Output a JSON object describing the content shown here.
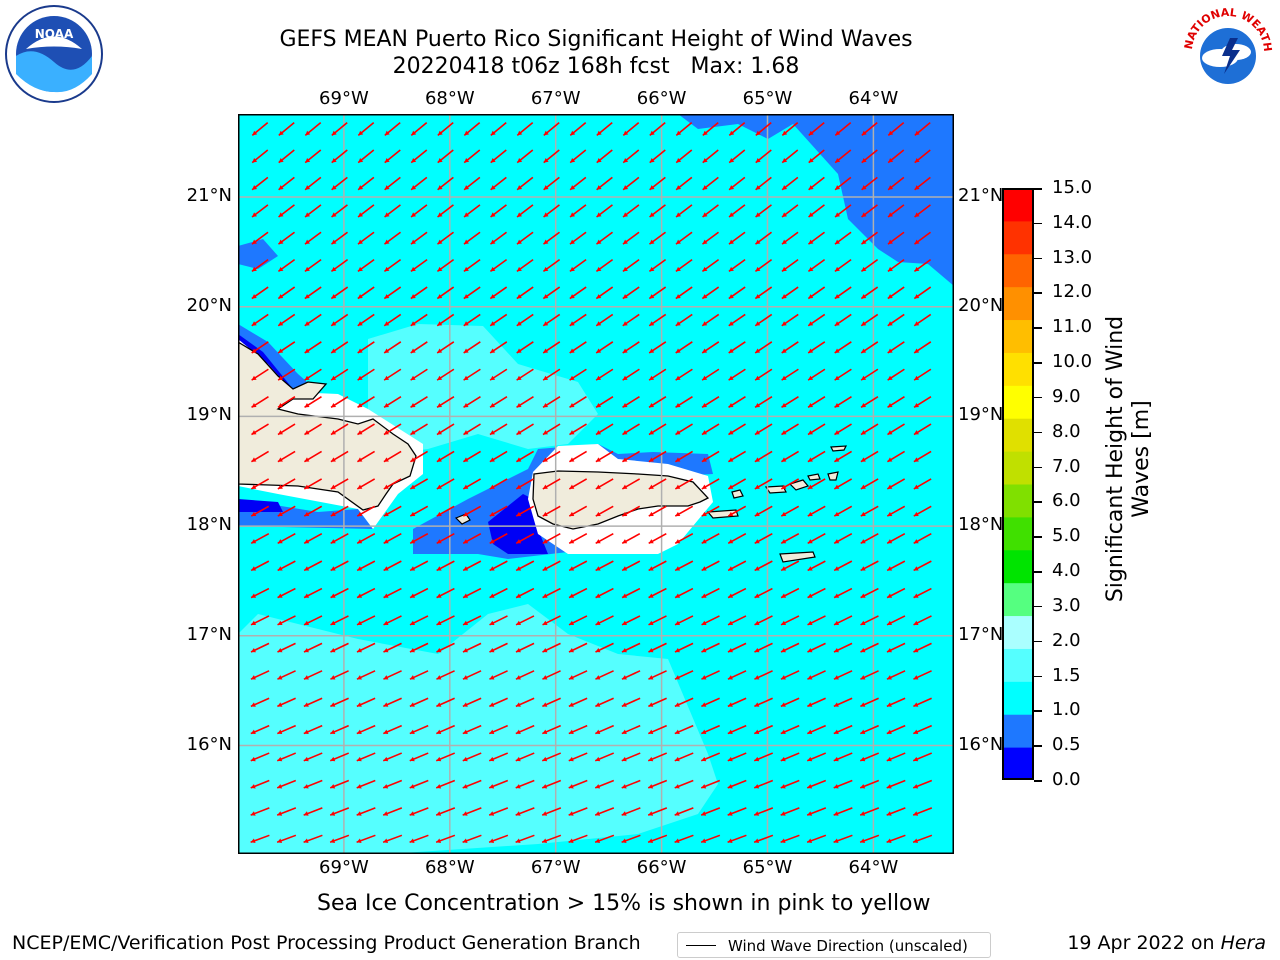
{
  "title": {
    "line1": "GEFS MEAN Puerto Rico Significant Height of Wind Waves",
    "line2": "20220418 t06z 168h fcst   Max: 1.68"
  },
  "map": {
    "lon_labels": [
      "69°W",
      "68°W",
      "67°W",
      "66°W",
      "65°W",
      "64°W"
    ],
    "lat_labels": [
      "21°N",
      "20°N",
      "19°N",
      "18°N",
      "17°N",
      "16°N"
    ],
    "legend_label": "Wind Wave Direction (unscaled)",
    "colors": {
      "ocean_base": "#00ffff",
      "light_cyan": "#55ffff",
      "blue": "#1e78ff",
      "dark_blue": "#0000f5",
      "land": "#f0ecdc",
      "grid": "#b0b0b0",
      "arrow": "#ff0000"
    }
  },
  "colorbar": {
    "label": "Significant Height of Wind Waves [m]",
    "label_line1": "Significant Height of Wind",
    "label_line2": "Waves [m]",
    "ticks": [
      "15.0",
      "14.0",
      "13.0",
      "12.0",
      "11.0",
      "10.0",
      "9.0",
      "8.0",
      "7.0",
      "6.0",
      "5.0",
      "4.0",
      "3.0",
      "2.0",
      "1.5",
      "1.0",
      "0.5",
      "0.0"
    ],
    "colors_bottom_to_top": [
      "#0000ff",
      "#1e78ff",
      "#00ffff",
      "#55ffff",
      "#aaffff",
      "#55ff80",
      "#00e400",
      "#40e000",
      "#80e000",
      "#c0e000",
      "#e0e000",
      "#ffff00",
      "#ffe000",
      "#ffbe00",
      "#ff9000",
      "#ff6400",
      "#ff3200",
      "#ff0000"
    ]
  },
  "notes": {
    "sea_ice": "Sea Ice Concentration > 15% is shown in pink to yellow"
  },
  "footer": {
    "left": "NCEP/EMC/Verification Post Processing Product Generation Branch",
    "right_prefix": "19 Apr 2022 on ",
    "right_host": "Hera"
  },
  "logos": {
    "left": "NOAA",
    "right": "NATIONAL WEATHER SERVICE"
  }
}
